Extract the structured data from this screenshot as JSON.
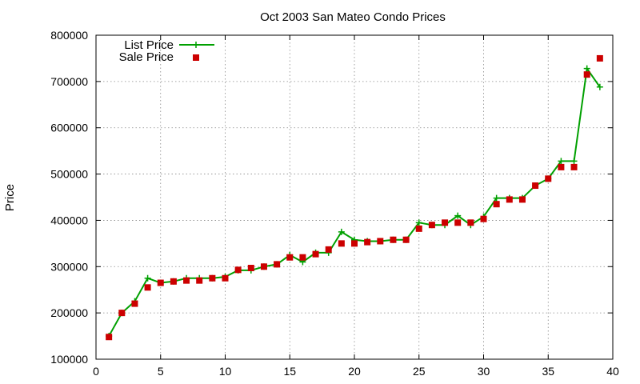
{
  "chart_data": {
    "type": "line",
    "title": "Oct 2003 San Mateo Condo Prices",
    "xlabel": "",
    "ylabel": "Price",
    "xlim": [
      0,
      40
    ],
    "ylim": [
      100000,
      800000
    ],
    "xticks": [
      0,
      5,
      10,
      15,
      20,
      25,
      30,
      35,
      40
    ],
    "yticks": [
      100000,
      200000,
      300000,
      400000,
      500000,
      600000,
      700000,
      800000
    ],
    "grid": true,
    "legend": "top-left",
    "series": [
      {
        "name": "List Price",
        "style": "line+cross",
        "color": "#00a000",
        "x": [
          1,
          2,
          3,
          4,
          5,
          6,
          7,
          8,
          9,
          10,
          11,
          12,
          13,
          14,
          15,
          16,
          17,
          18,
          19,
          20,
          21,
          22,
          23,
          24,
          25,
          26,
          27,
          28,
          29,
          30,
          31,
          32,
          33,
          34,
          35,
          36,
          37,
          38,
          39
        ],
        "y": [
          150000,
          200000,
          225000,
          275000,
          265000,
          268000,
          275000,
          275000,
          275000,
          278000,
          292000,
          292000,
          300000,
          305000,
          325000,
          310000,
          330000,
          330000,
          375000,
          358000,
          355000,
          355000,
          358000,
          358000,
          395000,
          390000,
          390000,
          410000,
          390000,
          408000,
          448000,
          448000,
          448000,
          475000,
          490000,
          528000,
          528000,
          728000,
          688000
        ]
      },
      {
        "name": "Sale Price",
        "style": "square",
        "color": "#cc0000",
        "x": [
          1,
          2,
          3,
          4,
          5,
          6,
          7,
          8,
          9,
          10,
          11,
          12,
          13,
          14,
          15,
          16,
          17,
          18,
          19,
          20,
          21,
          22,
          23,
          24,
          25,
          26,
          27,
          28,
          29,
          30,
          31,
          32,
          33,
          34,
          35,
          36,
          37,
          38,
          39
        ],
        "y": [
          148000,
          200000,
          220000,
          255000,
          265000,
          268000,
          270000,
          270000,
          275000,
          275000,
          293000,
          297000,
          300000,
          305000,
          320000,
          320000,
          327000,
          337000,
          350000,
          350000,
          353000,
          355000,
          358000,
          358000,
          382000,
          390000,
          395000,
          395000,
          395000,
          403000,
          435000,
          445000,
          445000,
          475000,
          490000,
          515000,
          515000,
          715000,
          750000
        ]
      }
    ]
  }
}
